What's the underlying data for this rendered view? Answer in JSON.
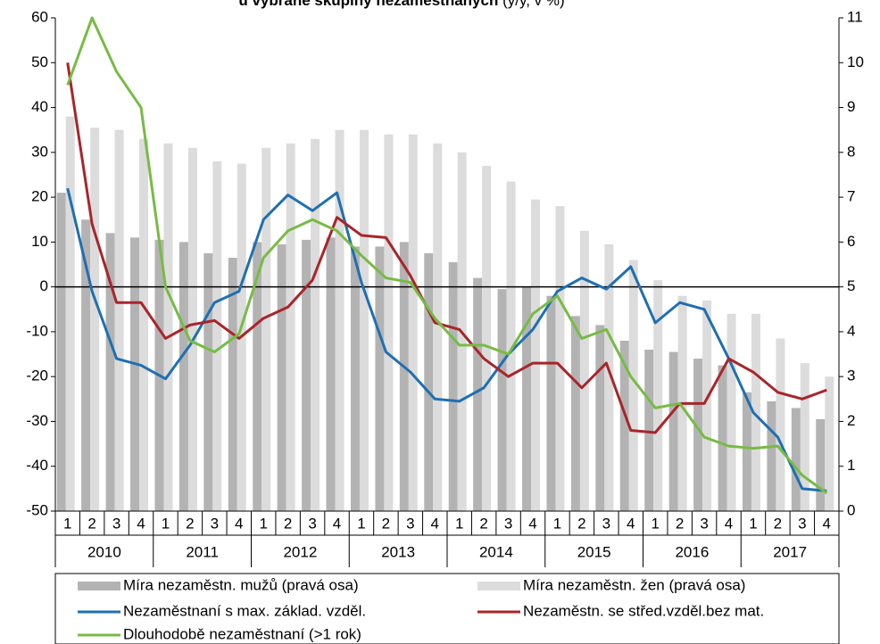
{
  "chart_data": {
    "type": "bar-line",
    "title": "u vybrané skupiny nezaměstnaných",
    "subtitle": "(y/y, v %)",
    "categories": [
      "1",
      "2",
      "3",
      "4",
      "1",
      "2",
      "3",
      "4",
      "1",
      "2",
      "3",
      "4",
      "1",
      "2",
      "3",
      "4",
      "1",
      "2",
      "3",
      "4",
      "1",
      "2",
      "3",
      "4",
      "1",
      "2",
      "3",
      "4",
      "1",
      "2",
      "3",
      "4"
    ],
    "years": [
      "2010",
      "2011",
      "2012",
      "2013",
      "2014",
      "2015",
      "2016",
      "2017"
    ],
    "ylim": [
      -50,
      60
    ],
    "yticks": [
      -50,
      -40,
      -30,
      -20,
      -10,
      0,
      10,
      20,
      30,
      40,
      50,
      60
    ],
    "y2lim": [
      0,
      11
    ],
    "y2ticks": [
      0,
      1,
      2,
      3,
      4,
      5,
      6,
      7,
      8,
      9,
      10,
      11
    ],
    "series": [
      {
        "name": "Míra nezaměstn. mužů (pravá osa)",
        "kind": "bar",
        "axis": "y2",
        "color": "#b3b3b3",
        "values": [
          7.1,
          6.5,
          6.2,
          6.1,
          6.05,
          6.0,
          5.75,
          5.65,
          6.0,
          5.95,
          6.05,
          6.1,
          5.9,
          5.9,
          6.0,
          5.75,
          5.55,
          5.2,
          4.95,
          5.0,
          4.8,
          4.35,
          4.15,
          3.8,
          3.6,
          3.55,
          3.4,
          3.25,
          2.65,
          2.45,
          2.3,
          2.05
        ]
      },
      {
        "name": "Míra nezaměstn. žen (pravá osa)",
        "kind": "bar",
        "axis": "y2",
        "color": "#dcdcdc",
        "values": [
          8.8,
          8.55,
          8.5,
          8.3,
          8.2,
          8.1,
          7.8,
          7.75,
          8.1,
          8.2,
          8.3,
          8.5,
          8.5,
          8.4,
          8.4,
          8.2,
          8.0,
          7.7,
          7.35,
          6.95,
          6.8,
          6.25,
          5.95,
          5.6,
          5.15,
          4.8,
          4.7,
          4.4,
          4.4,
          3.85,
          3.3,
          3.0
        ]
      },
      {
        "name": "Nezaměstnaní s max. základ. vzděl.",
        "kind": "line",
        "color": "#1f6fb2",
        "values": [
          22,
          -1,
          -16,
          -17.5,
          -20.5,
          -13,
          -3.5,
          -1,
          15,
          20.5,
          17,
          21,
          1,
          -14.5,
          -19,
          -25,
          -25.5,
          -22.5,
          -15,
          -9.5,
          -1,
          2,
          -0.5,
          4.5,
          -8,
          -3.5,
          -5,
          -16,
          -28,
          -33.5,
          -45,
          -45.5
        ]
      },
      {
        "name": "Nezaměstn. se střed.vzděl.bez mat.",
        "kind": "line",
        "color": "#a8252a",
        "values": [
          50,
          14,
          -3.5,
          -3.5,
          -11.5,
          -8.5,
          -7.5,
          -11.5,
          -7,
          -4.5,
          1.5,
          15.5,
          11.5,
          11,
          2.5,
          -8,
          -9.5,
          -16,
          -20,
          -17,
          -17,
          -22.5,
          -17,
          -32,
          -32.5,
          -26,
          -26,
          -16,
          -19,
          -23.5,
          -25,
          -23
        ]
      },
      {
        "name": "Dlouhodobě nezaměstnaní (>1 rok)",
        "kind": "line",
        "color": "#77bb44",
        "values": [
          45,
          60,
          48,
          40,
          0,
          -12,
          -14.5,
          -10.5,
          6.5,
          12.5,
          15,
          12.5,
          7,
          2,
          1,
          -7,
          -13,
          -13,
          -15,
          -6,
          -2,
          -11.5,
          -9.5,
          -20,
          -27,
          -26,
          -33.5,
          -35.5,
          -36,
          -35.5,
          -42,
          -46
        ]
      }
    ]
  }
}
